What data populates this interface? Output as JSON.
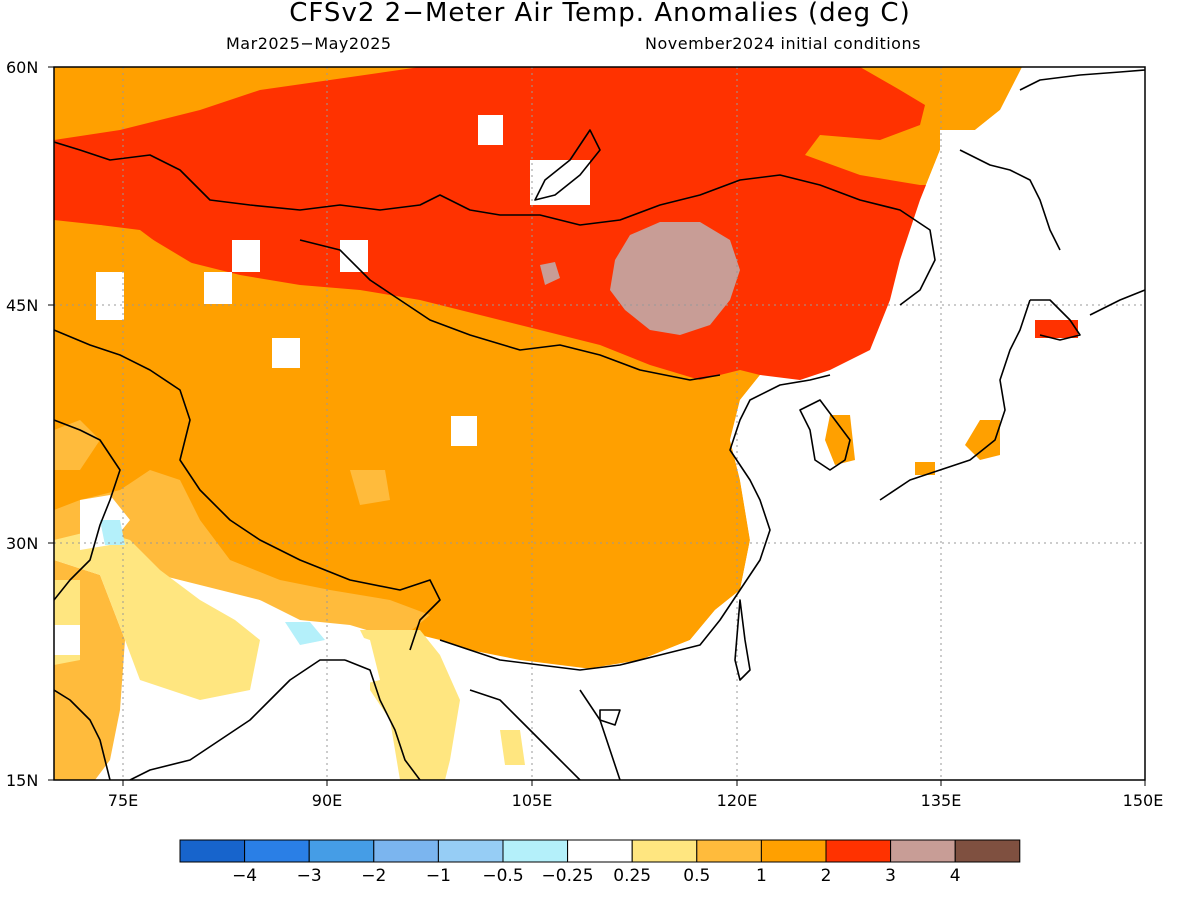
{
  "title": "CFSv2 2−Meter Air Temp. Anomalies (deg C)",
  "subtitle_left": "Mar2025−May2025",
  "subtitle_right": "November2024 initial conditions",
  "lat_labels": [
    "60N",
    "45N",
    "30N",
    "15N"
  ],
  "lon_labels": [
    "75E",
    "90E",
    "105E",
    "120E",
    "135E",
    "150E"
  ],
  "colorbar": {
    "colors": [
      "#1764cc",
      "#2a7fe6",
      "#459de6",
      "#7bb5ef",
      "#96cdf5",
      "#b4f0fa",
      "#ffffff",
      "#ffe680",
      "#ffbb3c",
      "#ffa000",
      "#ff3200",
      "#c89d96",
      "#7f5040"
    ],
    "labels": [
      "−4",
      "−3",
      "−2",
      "−1",
      "−0.5",
      "−0.25",
      "0.25",
      "0.5",
      "1",
      "2",
      "3",
      "4"
    ]
  },
  "legend_colors": {
    "ocean": "#ffffff",
    "gt_3": "#c89d96",
    "2_to_3": "#ff3200",
    "1_to_2": "#ffa000",
    "0.5_to_1": "#ffbb3c",
    "0.25_to_0.5": "#ffe680",
    "neg_0.5_to_neg_0.25": "#b4f0fa"
  }
}
